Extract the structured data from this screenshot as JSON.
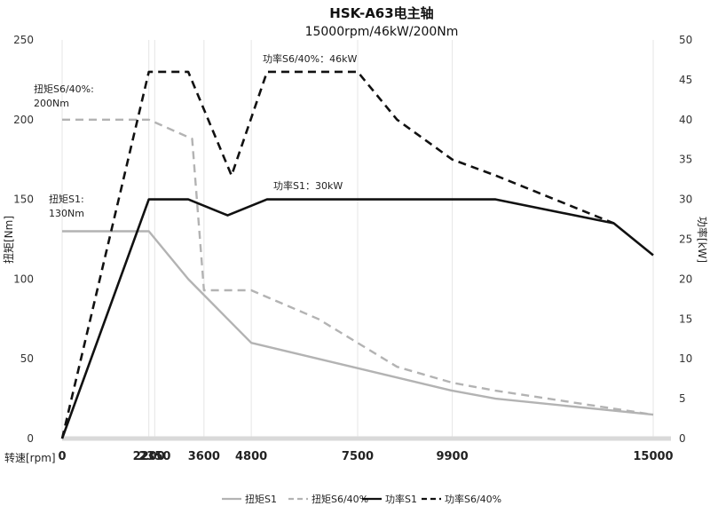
{
  "chart_data": {
    "type": "line",
    "title": "HSK-A63电主轴",
    "subtitle": "15000rpm/46kW/200Nm",
    "xlabel": "转速[rpm]",
    "ylabel_left": "扭矩[Nm]",
    "ylabel_right": "功率[kW]",
    "xlim": [
      0,
      15000
    ],
    "ylim_left": [
      0,
      250
    ],
    "ylim_right": [
      0,
      50
    ],
    "xticks": [
      "0",
      "2200",
      "2350",
      "3600",
      "4800",
      "7500",
      "9900",
      "15000"
    ],
    "yticks_left": [
      "0",
      "50",
      "100",
      "150",
      "200",
      "250"
    ],
    "yticks_right": [
      "0",
      "5",
      "10",
      "15",
      "20",
      "25",
      "30",
      "35",
      "40",
      "45",
      "50"
    ],
    "grid": "vertical",
    "legend_position": "bottom",
    "series": [
      {
        "name": "扭矩S1",
        "axis": "left",
        "color": "#b3b3b3",
        "dash": "solid",
        "x": [
          0,
          1000,
          2200,
          3200,
          4800,
          9900,
          11000,
          15000
        ],
        "y": [
          130,
          130,
          130,
          100,
          60,
          30,
          25,
          15
        ]
      },
      {
        "name": "扭矩S6/40%",
        "axis": "left",
        "color": "#b3b3b3",
        "dash": "dashed",
        "x": [
          0,
          1000,
          2200,
          3300,
          3600,
          4800,
          6500,
          8500,
          9900,
          11000,
          15000
        ],
        "y": [
          200,
          200,
          200,
          188,
          93,
          93,
          75,
          45,
          35,
          30,
          15
        ]
      },
      {
        "name": "功率S1",
        "axis": "right",
        "color": "#111111",
        "dash": "solid",
        "x": [
          0,
          2200,
          3200,
          4200,
          5200,
          11000,
          14000,
          15000
        ],
        "y": [
          0,
          30,
          30,
          28,
          30,
          30,
          27,
          23
        ]
      },
      {
        "name": "功率S6/40%",
        "axis": "right",
        "color": "#111111",
        "dash": "dashed",
        "x": [
          0,
          2200,
          3200,
          4300,
          5200,
          7500,
          8500,
          9900,
          11000,
          12000,
          14000
        ],
        "y": [
          0,
          46,
          46,
          33,
          46,
          46,
          40,
          35,
          33,
          31,
          27
        ]
      }
    ],
    "annotations": [
      {
        "text": "扭矩S6/40%:",
        "x": 0,
        "y": 215,
        "axis": "left"
      },
      {
        "text": "200Nm",
        "x": 0,
        "y": 207,
        "axis": "left"
      },
      {
        "text": "扭矩S1:",
        "x": 0,
        "y": 149,
        "axis": "left"
      },
      {
        "text": "130Nm",
        "x": 0,
        "y": 141,
        "axis": "left"
      },
      {
        "text": "功率S6/40%：46kW",
        "x": 5000,
        "y": 48,
        "axis": "right"
      },
      {
        "text": "功率S1：30kW",
        "x": 5000,
        "y": 31.5,
        "axis": "right"
      }
    ]
  }
}
